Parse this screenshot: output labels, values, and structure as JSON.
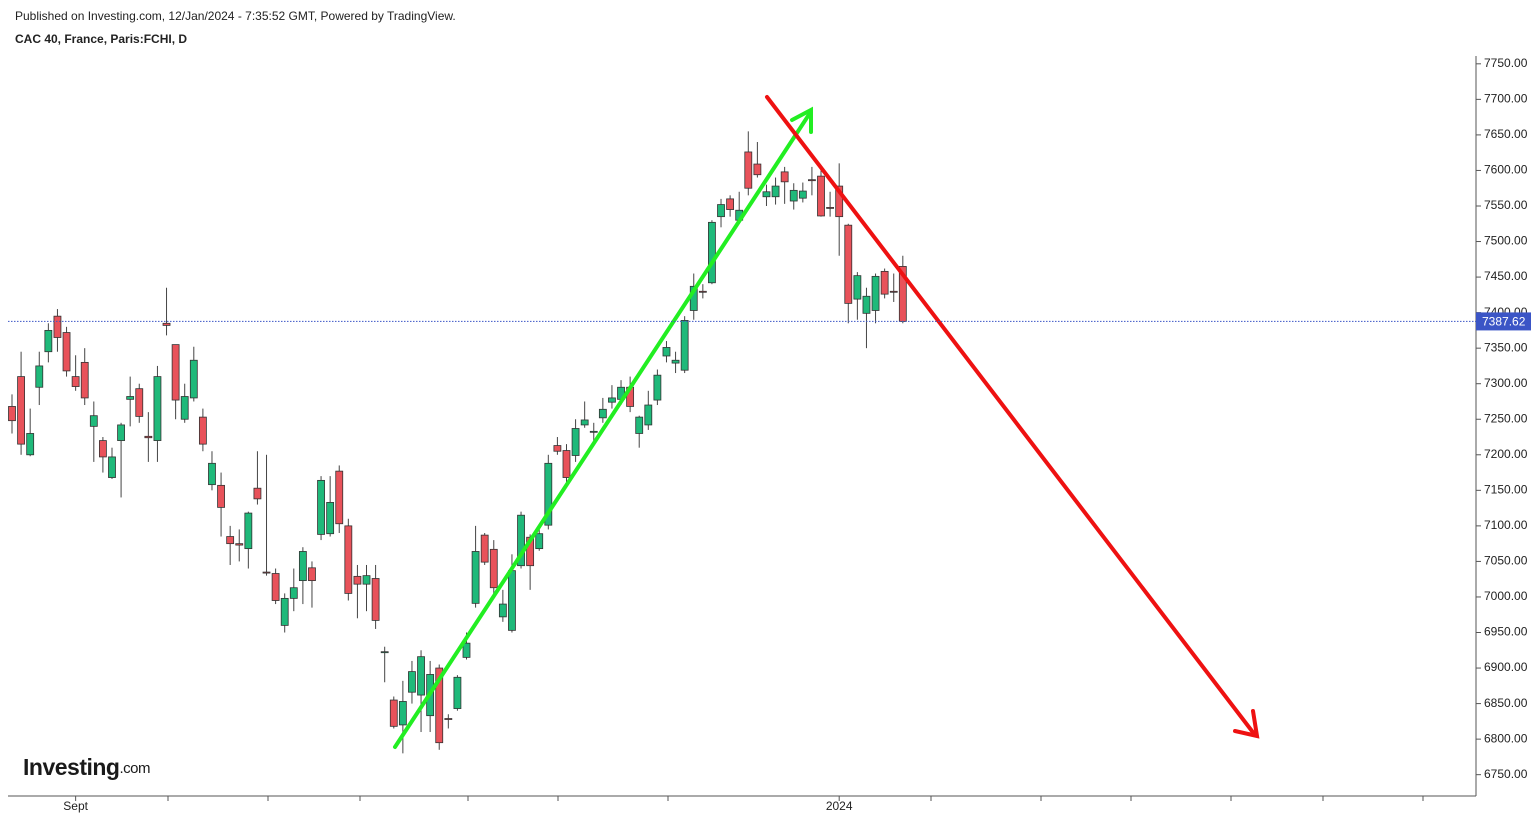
{
  "header": {
    "published": "Published on Investing.com, 12/Jan/2024 - 7:35:52 GMT, Powered by TradingView.",
    "symbol": "CAC 40, France, Paris:FCHI, D"
  },
  "logo": {
    "name": "Investing",
    "suffix": ".com"
  },
  "chart_data": {
    "type": "candlestick",
    "categories": [
      null,
      null,
      null,
      null,
      null,
      null,
      null,
      "Sept",
      null,
      null,
      null,
      null,
      null,
      null,
      null,
      null,
      null,
      null,
      null,
      null,
      null,
      null,
      null,
      null,
      null,
      null,
      null,
      null,
      null,
      null,
      null,
      null,
      null,
      null,
      null,
      null,
      null,
      null,
      null,
      null,
      null,
      null,
      null,
      null,
      null,
      null,
      null,
      null,
      null,
      null,
      null,
      null,
      null,
      null,
      null,
      null,
      null,
      null,
      null,
      null,
      null,
      null,
      null,
      null,
      null,
      null,
      null,
      null,
      null,
      null,
      null,
      null,
      null,
      null,
      null,
      null,
      null,
      null,
      null,
      null,
      null,
      null,
      null,
      null,
      null,
      null,
      null,
      null,
      null,
      null,
      null,
      "2024",
      null,
      null,
      null,
      null,
      null,
      null,
      null
    ],
    "open": [
      7268,
      7310,
      7200,
      7295,
      7345,
      7395,
      7372,
      7310,
      7330,
      7240,
      7220,
      7168,
      7220,
      7278,
      7293,
      7226,
      7220,
      7385,
      7355,
      7250,
      7280,
      7253,
      7158,
      7157,
      7085,
      7075,
      7068,
      7153,
      7035,
      7033,
      6960,
      6998,
      7023,
      7041,
      7088,
      7089,
      7177,
      7100,
      7029,
      7018,
      7026,
      6922,
      6855,
      6820,
      6866,
      6862,
      6833,
      6900,
      6829,
      6843,
      6915,
      6991,
      7087,
      7067,
      6972,
      6953,
      7044,
      7084,
      7068,
      7101,
      7213,
      7206,
      7199,
      7242,
      7232,
      7252,
      7274,
      7278,
      7295,
      7230,
      7242,
      7277,
      7339,
      7329,
      7319,
      7403,
      7430,
      7442,
      7535,
      7560,
      7530,
      7626,
      7609,
      7563,
      7563,
      7598,
      7557,
      7561,
      7587,
      7592,
      7548,
      7578,
      7523,
      7419,
      7399,
      7403,
      7458,
      7430,
      7465
    ],
    "high": [
      7285,
      7345,
      7265,
      7345,
      7385,
      7405,
      7380,
      7340,
      7350,
      7275,
      7225,
      7210,
      7245,
      7310,
      7300,
      7260,
      7325,
      7435,
      7355,
      7300,
      7352,
      7265,
      7205,
      7175,
      7100,
      7095,
      7120,
      7205,
      7200,
      7040,
      7005,
      7040,
      7070,
      7050,
      7170,
      7170,
      7185,
      7110,
      7045,
      7045,
      7045,
      6930,
      6860,
      6882,
      6910,
      6925,
      6910,
      6905,
      6835,
      6890,
      6950,
      7100,
      7090,
      7080,
      7010,
      7060,
      7120,
      7088,
      7100,
      7200,
      7225,
      7215,
      7250,
      7275,
      7245,
      7280,
      7298,
      7305,
      7310,
      7255,
      7290,
      7320,
      7360,
      7345,
      7395,
      7455,
      7440,
      7530,
      7560,
      7565,
      7570,
      7655,
      7640,
      7580,
      7590,
      7605,
      7582,
      7583,
      7605,
      7600,
      7570,
      7610,
      7525,
      7457,
      7435,
      7455,
      7462,
      7455,
      7480
    ],
    "low": [
      7230,
      7200,
      7198,
      7270,
      7330,
      7345,
      7310,
      7290,
      7270,
      7190,
      7175,
      7166,
      7140,
      7240,
      7245,
      7190,
      7190,
      7368,
      7250,
      7245,
      7275,
      7205,
      7150,
      7085,
      7045,
      7050,
      7040,
      7130,
      7030,
      6990,
      6950,
      6980,
      6990,
      6985,
      7080,
      7085,
      7090,
      6995,
      6970,
      6980,
      6955,
      6880,
      6815,
      6780,
      6850,
      6810,
      6810,
      6785,
      6815,
      6840,
      6912,
      6985,
      7045,
      7000,
      6965,
      6950,
      7040,
      7010,
      7065,
      7095,
      7200,
      7160,
      7190,
      7238,
      7215,
      7245,
      7265,
      7270,
      7260,
      7210,
      7235,
      7270,
      7330,
      7315,
      7315,
      7390,
      7420,
      7440,
      7520,
      7535,
      7525,
      7565,
      7590,
      7550,
      7552,
      7553,
      7545,
      7555,
      7565,
      7535,
      7535,
      7480,
      7385,
      7390,
      7350,
      7385,
      7420,
      7415,
      7385
    ],
    "close": [
      7248,
      7215,
      7230,
      7325,
      7375,
      7365,
      7318,
      7296,
      7280,
      7255,
      7197,
      7197,
      7242,
      7282,
      7254,
      7224,
      7310,
      7382,
      7277,
      7282,
      7333,
      7215,
      7188,
      7126,
      7075,
      7073,
      7118,
      7138,
      7034,
      6995,
      6998,
      7013,
      7064,
      7023,
      7164,
      7133,
      7103,
      7005,
      7018,
      7030,
      6967,
      6923,
      6818,
      6853,
      6895,
      6916,
      6891,
      6795,
      6828,
      6887,
      6935,
      7064,
      7049,
      7013,
      6990,
      7037,
      7115,
      7044,
      7089,
      7188,
      7205,
      7168,
      7237,
      7249,
      7233,
      7264,
      7280,
      7295,
      7268,
      7253,
      7270,
      7312,
      7351,
      7333,
      7389,
      7437,
      7429,
      7527,
      7552,
      7545,
      7544,
      7575,
      7594,
      7570,
      7578,
      7584,
      7572,
      7571,
      7586,
      7536,
      7547,
      7535,
      7413,
      7452,
      7423,
      7451,
      7426,
      7429,
      7387.62
    ],
    "up_color": "#1fb97a",
    "down_color": "#e8525a",
    "last_price": 7387.62,
    "last_price_color": "#3b55c6",
    "ylim": [
      6720,
      7761
    ],
    "yticks": [
      {
        "value": 6750,
        "label": "6750.00"
      },
      {
        "value": 6800,
        "label": "6800.00"
      },
      {
        "value": 6850,
        "label": "6850.00"
      },
      {
        "value": 6900,
        "label": "6900.00"
      },
      {
        "value": 6950,
        "label": "6950.00"
      },
      {
        "value": 7000,
        "label": "7000.00"
      },
      {
        "value": 7050,
        "label": "7050.00"
      },
      {
        "value": 7100,
        "label": "7100.00"
      },
      {
        "value": 7150,
        "label": "7150.00"
      },
      {
        "value": 7200,
        "label": "7200.00"
      },
      {
        "value": 7250,
        "label": "7250.00"
      },
      {
        "value": 7300,
        "label": "7300.00"
      },
      {
        "value": 7350,
        "label": "7350.00"
      },
      {
        "value": 7400,
        "label": "7400.00"
      },
      {
        "value": 7450,
        "label": "7450.00"
      },
      {
        "value": 7500,
        "label": "7500.00"
      },
      {
        "value": 7550,
        "label": "7550.00"
      },
      {
        "value": 7600,
        "label": "7600.00"
      },
      {
        "value": 7650,
        "label": "7650.00"
      },
      {
        "value": 7700,
        "label": "7700.00"
      },
      {
        "value": 7750,
        "label": "7750.00"
      }
    ]
  }
}
